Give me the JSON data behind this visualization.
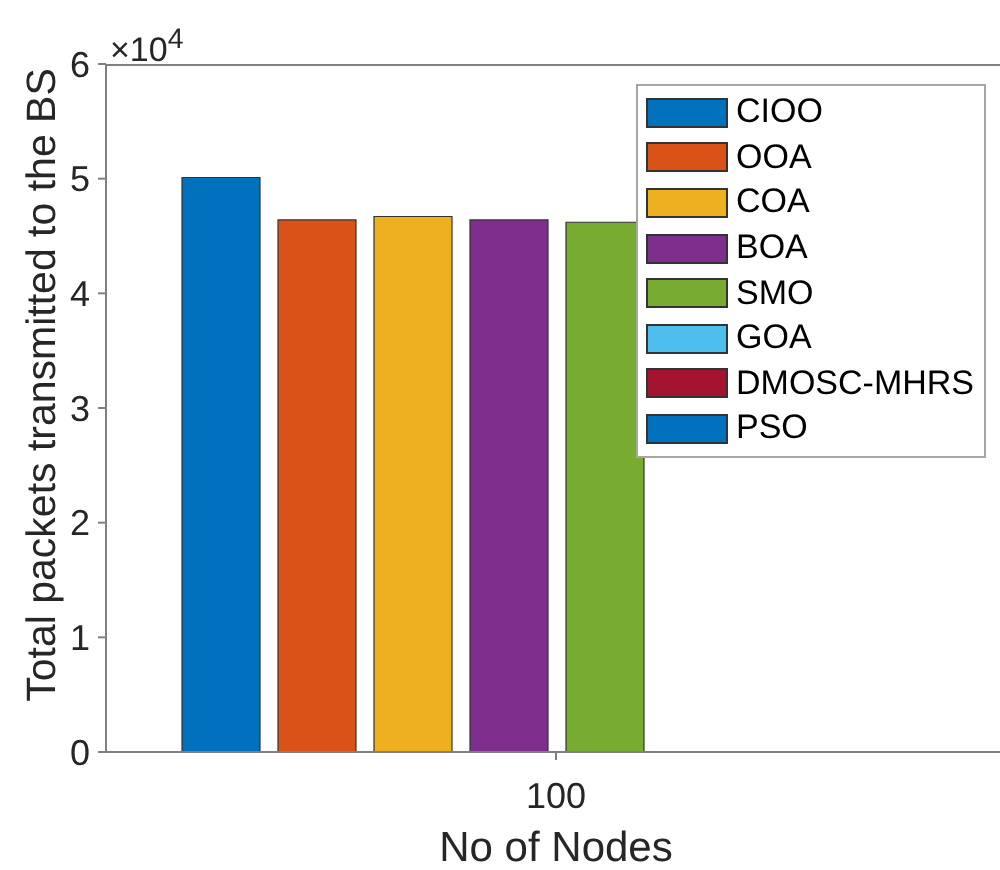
{
  "chart_data": {
    "type": "bar",
    "xlabel": "No of Nodes",
    "ylabel": "Total packets transmitted to the BS",
    "categories": [
      "100"
    ],
    "series": [
      {
        "name": "CIOO",
        "color": "#0072bd",
        "values": [
          5.01
        ]
      },
      {
        "name": "OOA",
        "color": "#d95319",
        "values": [
          4.64
        ]
      },
      {
        "name": "COA",
        "color": "#edb120",
        "values": [
          4.67
        ]
      },
      {
        "name": "BOA",
        "color": "#7e2f8e",
        "values": [
          4.64
        ]
      },
      {
        "name": "SMO",
        "color": "#77ac30",
        "values": [
          4.62
        ]
      },
      {
        "name": "GOA",
        "color": "#4dbeee",
        "values": [
          null
        ]
      },
      {
        "name": "DMOSC-MHRS",
        "color": "#a2142f",
        "values": [
          null
        ]
      },
      {
        "name": "PSO",
        "color": "#0072bd",
        "values": [
          null
        ]
      }
    ],
    "ylim": [
      0,
      6
    ],
    "yticks": [
      0,
      1,
      2,
      3,
      4,
      5,
      6
    ],
    "legend": "top right",
    "annotations": [
      "×10$^{4}$"
    ]
  }
}
